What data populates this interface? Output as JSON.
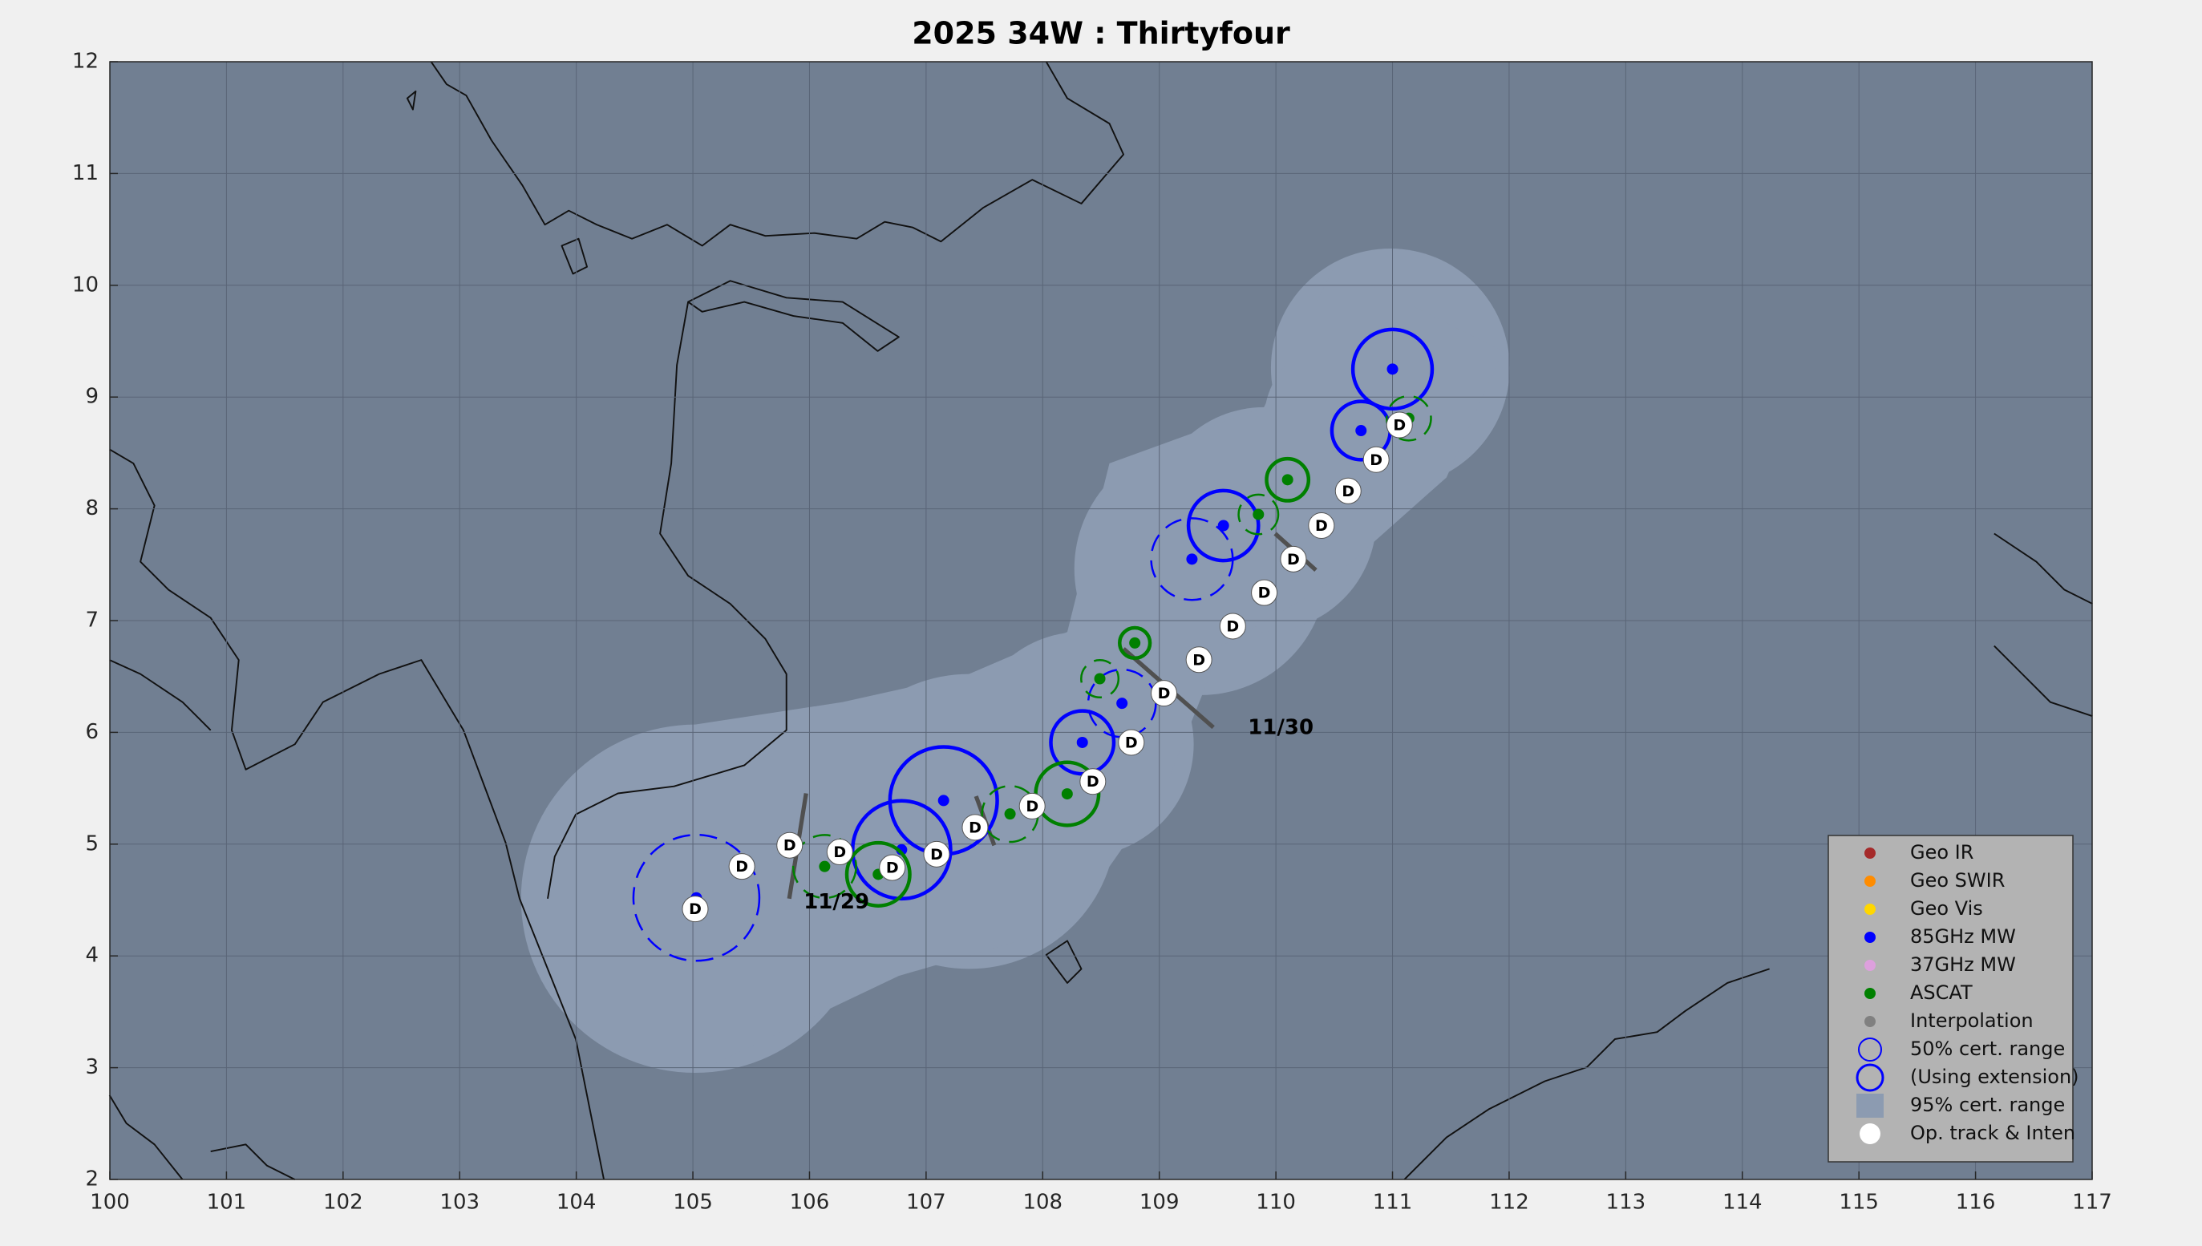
{
  "chart_data": {
    "type": "track",
    "title": "2025  34W :  Thirtyfour",
    "xlim": [
      100,
      117
    ],
    "ylim": [
      2,
      12
    ],
    "xticks": [
      100,
      101,
      102,
      103,
      104,
      105,
      106,
      107,
      108,
      109,
      110,
      111,
      112,
      113,
      114,
      115,
      116,
      117
    ],
    "yticks": [
      2,
      3,
      4,
      5,
      6,
      7,
      8,
      9,
      10,
      11,
      12
    ],
    "grid": true,
    "legend": "lower right",
    "series": [
      {
        "name": "Geo IR",
        "color": "#a52a2a",
        "x": [],
        "y": []
      },
      {
        "name": "Geo SWIR",
        "color": "#ff8c00",
        "x": [],
        "y": []
      },
      {
        "name": "Geo Vis",
        "color": "#ffd700",
        "x": [],
        "y": []
      },
      {
        "name": "85GHz MW",
        "color": "#0000ff",
        "x": [
          105.03,
          106.79,
          107.15,
          108.34,
          108.68,
          109.28,
          109.55,
          110.73,
          111.0
        ],
        "y": [
          4.52,
          4.95,
          5.39,
          5.91,
          6.26,
          7.55,
          7.85,
          8.7,
          9.25
        ],
        "radius": [
          0.54,
          0.42,
          0.46,
          0.27,
          0.29,
          0.35,
          0.3,
          0.25,
          0.34
        ],
        "dashed": [
          true,
          false,
          false,
          false,
          true,
          true,
          false,
          false,
          false
        ]
      },
      {
        "name": "37GHz MW",
        "color": "#dda0dd",
        "x": [],
        "y": []
      },
      {
        "name": "ASCAT",
        "color": "#008000",
        "x": [
          106.13,
          106.59,
          107.72,
          108.21,
          108.49,
          108.79,
          109.85,
          110.1,
          111.14
        ],
        "y": [
          4.8,
          4.73,
          5.27,
          5.45,
          6.48,
          6.8,
          7.95,
          8.26,
          8.81
        ],
        "radius": [
          0.27,
          0.27,
          0.24,
          0.27,
          0.16,
          0.13,
          0.17,
          0.18,
          0.19
        ],
        "dashed": [
          true,
          false,
          true,
          false,
          true,
          false,
          true,
          false,
          true
        ]
      },
      {
        "name": "Interpolation",
        "color": "#808080",
        "x": [],
        "y": []
      },
      {
        "name": "Op. track & Inten",
        "color": "#ffffff",
        "kind": "track",
        "x": [
          105.02,
          105.42,
          105.83,
          106.26,
          106.71,
          107.09,
          107.42,
          107.91,
          108.43,
          108.76,
          109.04,
          109.34,
          109.63,
          109.9,
          110.15,
          110.39,
          110.62,
          110.86,
          111.06
        ],
        "y": [
          4.42,
          4.8,
          4.99,
          4.93,
          4.79,
          4.91,
          5.15,
          5.34,
          5.56,
          5.91,
          6.35,
          6.65,
          6.95,
          7.25,
          7.55,
          7.85,
          8.16,
          8.44,
          8.75
        ],
        "labels": [
          "D",
          "D",
          "D",
          "D",
          "D",
          "D",
          "D",
          "D",
          "D",
          "D",
          "D",
          "D",
          "D",
          "D",
          "D",
          "D",
          "D",
          "D",
          "D"
        ]
      }
    ],
    "legend_extra": [
      {
        "name": "50% cert. range",
        "color": "#0000ff",
        "marker": "ring"
      },
      {
        "name": "(Using extension)",
        "color": "#0000ff",
        "marker": "ring-thick"
      },
      {
        "name": "95% cert. range",
        "color": "#8c9bb1",
        "marker": "square"
      }
    ],
    "annotations": [
      {
        "text": "11/29",
        "x": 105.95,
        "y": 4.48
      },
      {
        "text": "11/30",
        "x": 109.76,
        "y": 6.04
      }
    ]
  }
}
